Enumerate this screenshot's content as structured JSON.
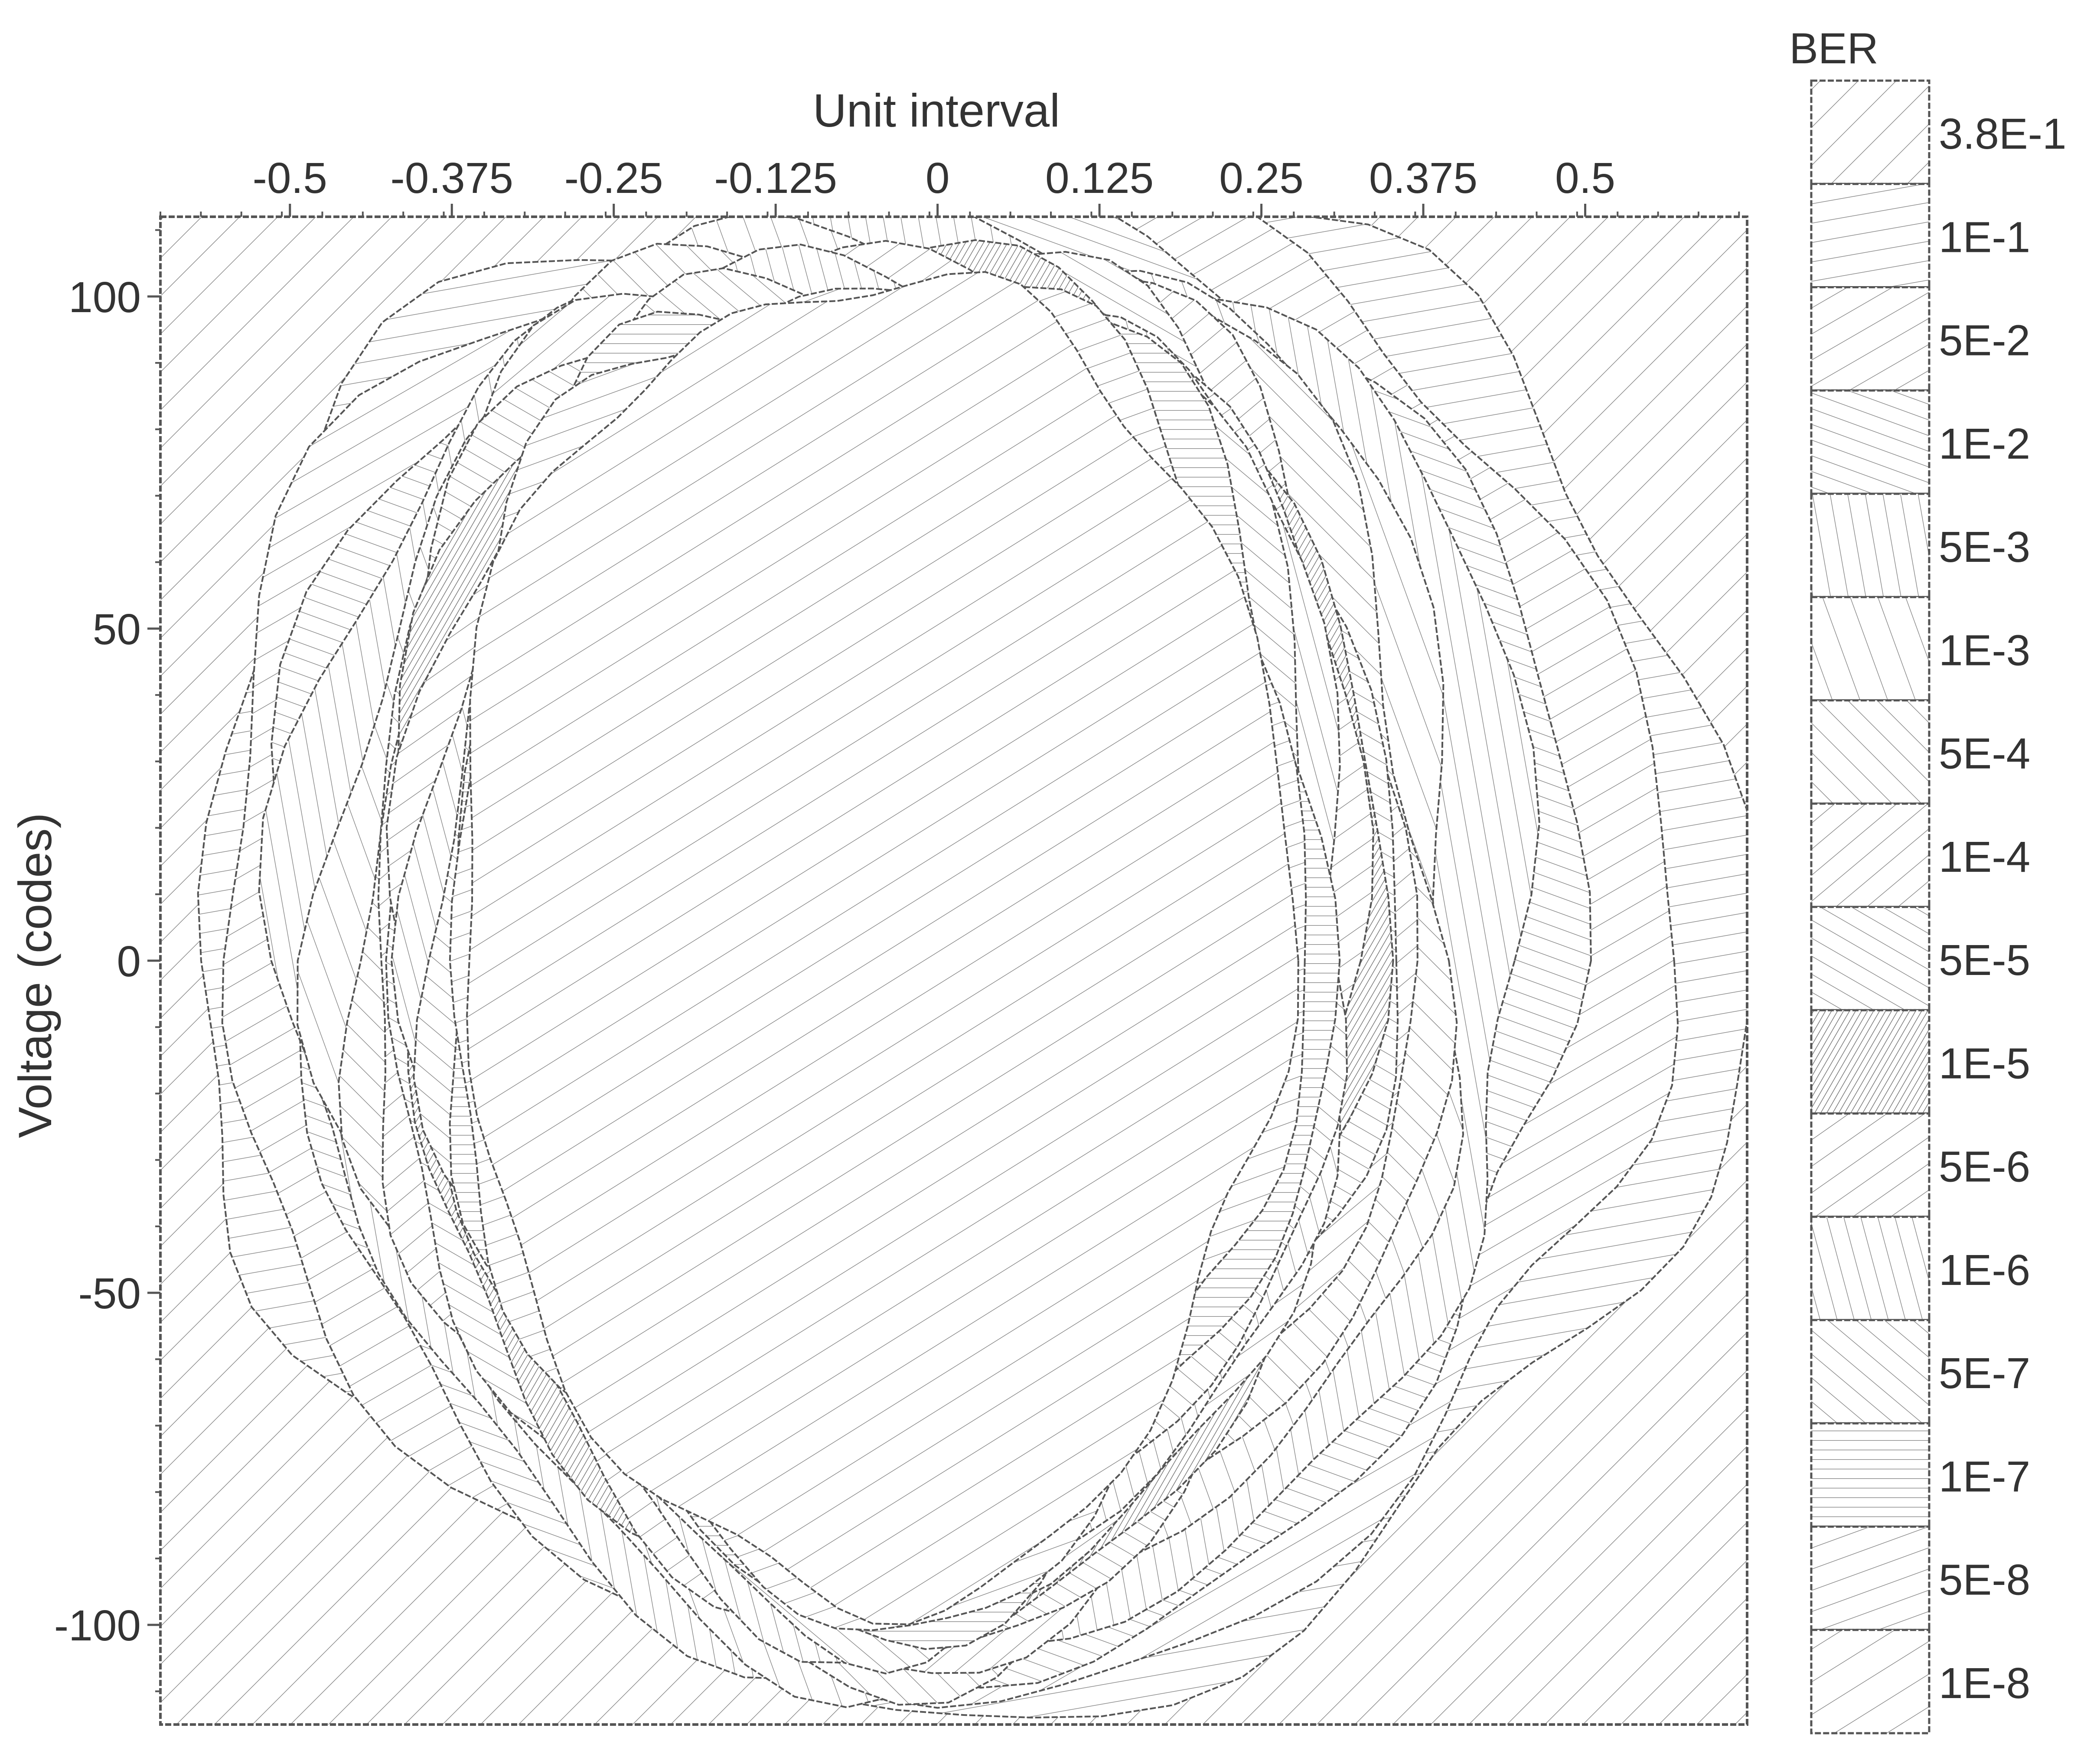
{
  "chart_data": {
    "type": "contour",
    "xlabel": "Unit interval",
    "ylabel": "Voltage (codes)",
    "xlim": [
      -0.6,
      0.625
    ],
    "ylim": [
      -115,
      112
    ],
    "x_axis_position": "top",
    "x_ticks": [
      -0.5,
      -0.375,
      -0.25,
      -0.125,
      0,
      0.125,
      0.25,
      0.375,
      0.5
    ],
    "x_tick_labels": [
      "-0.5",
      "-0.375",
      "-0.25",
      "-0.125",
      "0",
      "0.125",
      "0.25",
      "0.375",
      "0.5"
    ],
    "y_ticks": [
      100,
      50,
      0,
      -50,
      -100
    ],
    "y_tick_labels": [
      "100",
      "50",
      "0",
      "-50",
      "-100"
    ],
    "grid": false,
    "legend": {
      "title": "BER",
      "placement": "right",
      "entries": [
        "3.8E-1",
        "1E-1",
        "5E-2",
        "1E-2",
        "5E-3",
        "1E-3",
        "5E-4",
        "1E-4",
        "5E-5",
        "1E-5",
        "5E-6",
        "1E-6",
        "5E-7",
        "1E-7",
        "5E-8",
        "1E-8"
      ]
    },
    "fill_style": "hatched",
    "contours": [
      {
        "level": "3.8E-1",
        "shape": "outer",
        "center": [
          0.0,
          0.0
        ],
        "x_radius": 0.6,
        "y_radius": 115
      },
      {
        "level": "1E-1",
        "center": [
          0.02,
          0.0
        ],
        "x_radius": 0.6,
        "y_radius": 114
      },
      {
        "level": "5E-2",
        "center": [
          0.0,
          0.0
        ],
        "x_radius": 0.56,
        "y_radius": 112
      },
      {
        "level": "1E-2",
        "center": [
          -0.01,
          0.0
        ],
        "x_radius": 0.5,
        "y_radius": 111
      },
      {
        "level": "5E-3",
        "center": [
          -0.02,
          0.0
        ],
        "x_radius": 0.48,
        "y_radius": 110
      },
      {
        "level": "1E-3",
        "center": [
          -0.03,
          0.0
        ],
        "x_radius": 0.44,
        "y_radius": 108
      },
      {
        "level": "5E-4",
        "center": [
          -0.03,
          0.0
        ],
        "x_radius": 0.42,
        "y_radius": 107
      },
      {
        "level": "1E-4",
        "center": [
          -0.04,
          0.0
        ],
        "x_radius": 0.4,
        "y_radius": 106
      },
      {
        "level": "5E-5",
        "center": [
          -0.04,
          0.0
        ],
        "x_radius": 0.39,
        "y_radius": 105
      },
      {
        "level": "1E-5",
        "center": [
          -0.04,
          0.0
        ],
        "x_radius": 0.38,
        "y_radius": 104
      },
      {
        "level": "5E-6",
        "center": [
          -0.04,
          0.0
        ],
        "x_radius": 0.37,
        "y_radius": 103
      },
      {
        "level": "1E-6",
        "center": [
          -0.04,
          0.0
        ],
        "x_radius": 0.36,
        "y_radius": 103
      },
      {
        "level": "5E-7",
        "center": [
          -0.04,
          0.0
        ],
        "x_radius": 0.35,
        "y_radius": 102
      },
      {
        "level": "1E-7",
        "center": [
          -0.04,
          0.0
        ],
        "x_radius": 0.34,
        "y_radius": 101
      },
      {
        "level": "5E-8",
        "center": [
          -0.05,
          0.0
        ],
        "x_radius": 0.33,
        "y_radius": 101
      },
      {
        "level": "1E-8",
        "shape": "inner",
        "center": [
          -0.05,
          0.0
        ],
        "x_radius": 0.32,
        "y_radius": 100
      }
    ]
  }
}
